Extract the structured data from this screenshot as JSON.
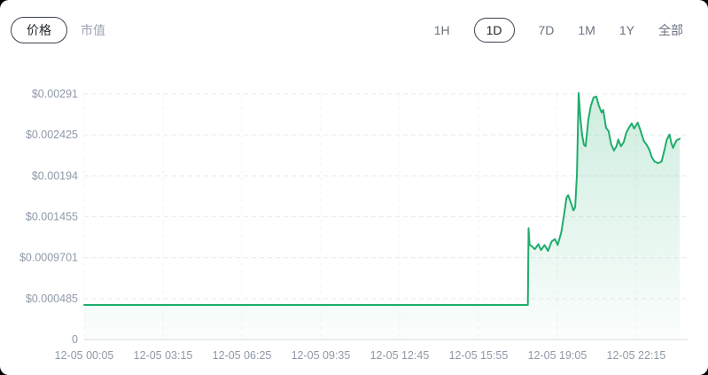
{
  "header": {
    "metric_toggle": {
      "options": [
        {
          "label": "价格",
          "selected": true
        },
        {
          "label": "市值",
          "selected": false
        }
      ]
    },
    "range_selector": {
      "options": [
        {
          "label": "1H",
          "selected": false
        },
        {
          "label": "1D",
          "selected": true
        },
        {
          "label": "7D",
          "selected": false
        },
        {
          "label": "1M",
          "selected": false
        },
        {
          "label": "1Y",
          "selected": false
        },
        {
          "label": "全部",
          "selected": false
        }
      ]
    }
  },
  "colors": {
    "line": "#1fad6c",
    "fill_top": "rgba(31,173,108,0.22)",
    "fill_bottom": "rgba(31,173,108,0.02)",
    "h_grid": "#e8eaef",
    "v_grid": "#f2f3f6",
    "zero_axis": "#e1e4ea",
    "tick_text": "#8f99a8",
    "pill_border": "#3a414d",
    "selected_text": "#21262e",
    "range_text": "#6b7380",
    "muted_text": "#9aa4b0"
  },
  "chart_data": {
    "type": "area",
    "xlabel": "",
    "ylabel": "",
    "grid": true,
    "legend": false,
    "ylim": [
      0,
      0.00291
    ],
    "xlim_hours": [
      0.083,
      24.0
    ],
    "y_ticks": [
      {
        "label": "$0.00291",
        "value": 0.00291
      },
      {
        "label": "$0.002425",
        "value": 0.002425
      },
      {
        "label": "$0.00194",
        "value": 0.00194
      },
      {
        "label": "$0.001455",
        "value": 0.001455
      },
      {
        "label": "$0.0009701",
        "value": 0.0009701
      },
      {
        "label": "$0.000485",
        "value": 0.000485
      },
      {
        "label": "0",
        "value": 0
      }
    ],
    "x_ticks": [
      {
        "label": "12-05 00:05",
        "hour": 0.083
      },
      {
        "label": "12-05 03:15",
        "hour": 3.25
      },
      {
        "label": "12-05 06:25",
        "hour": 6.417
      },
      {
        "label": "12-05 09:35",
        "hour": 9.583
      },
      {
        "label": "12-05 12:45",
        "hour": 12.75
      },
      {
        "label": "12-05 15:55",
        "hour": 15.917
      },
      {
        "label": "12-05 19:05",
        "hour": 19.083
      },
      {
        "label": "12-05 22:15",
        "hour": 22.25
      }
    ],
    "series": [
      {
        "name": "price_usd",
        "points": [
          [
            0.083,
            0.00041
          ],
          [
            17.9,
            0.00041
          ],
          [
            17.93,
            0.00132
          ],
          [
            17.97,
            0.00112
          ],
          [
            18.04,
            0.00111
          ],
          [
            18.18,
            0.00107
          ],
          [
            18.32,
            0.00113
          ],
          [
            18.43,
            0.00106
          ],
          [
            18.57,
            0.00112
          ],
          [
            18.71,
            0.00105
          ],
          [
            18.85,
            0.00116
          ],
          [
            18.99,
            0.00119
          ],
          [
            19.1,
            0.00112
          ],
          [
            19.24,
            0.00127
          ],
          [
            19.35,
            0.00147
          ],
          [
            19.45,
            0.00168
          ],
          [
            19.52,
            0.00171
          ],
          [
            19.63,
            0.00162
          ],
          [
            19.73,
            0.00153
          ],
          [
            19.8,
            0.00157
          ],
          [
            19.87,
            0.00196
          ],
          [
            19.94,
            0.00292
          ],
          [
            20.01,
            0.00262
          ],
          [
            20.08,
            0.00242
          ],
          [
            20.15,
            0.00231
          ],
          [
            20.22,
            0.00229
          ],
          [
            20.33,
            0.00261
          ],
          [
            20.43,
            0.00277
          ],
          [
            20.54,
            0.00287
          ],
          [
            20.65,
            0.00288
          ],
          [
            20.75,
            0.00277
          ],
          [
            20.86,
            0.00269
          ],
          [
            20.93,
            0.00272
          ],
          [
            21.04,
            0.00251
          ],
          [
            21.14,
            0.00247
          ],
          [
            21.25,
            0.00231
          ],
          [
            21.36,
            0.00224
          ],
          [
            21.46,
            0.00229
          ],
          [
            21.53,
            0.00237
          ],
          [
            21.64,
            0.00229
          ],
          [
            21.75,
            0.00234
          ],
          [
            21.85,
            0.00245
          ],
          [
            21.96,
            0.00251
          ],
          [
            22.07,
            0.00256
          ],
          [
            22.17,
            0.0025
          ],
          [
            22.31,
            0.00257
          ],
          [
            22.42,
            0.00248
          ],
          [
            22.56,
            0.00235
          ],
          [
            22.67,
            0.00231
          ],
          [
            22.78,
            0.00225
          ],
          [
            22.88,
            0.00216
          ],
          [
            22.99,
            0.00211
          ],
          [
            23.13,
            0.00209
          ],
          [
            23.27,
            0.00211
          ],
          [
            23.38,
            0.00224
          ],
          [
            23.48,
            0.00237
          ],
          [
            23.59,
            0.00243
          ],
          [
            23.66,
            0.00233
          ],
          [
            23.73,
            0.00227
          ],
          [
            23.8,
            0.00232
          ],
          [
            23.87,
            0.00236
          ],
          [
            24.0,
            0.00238
          ]
        ]
      }
    ]
  }
}
